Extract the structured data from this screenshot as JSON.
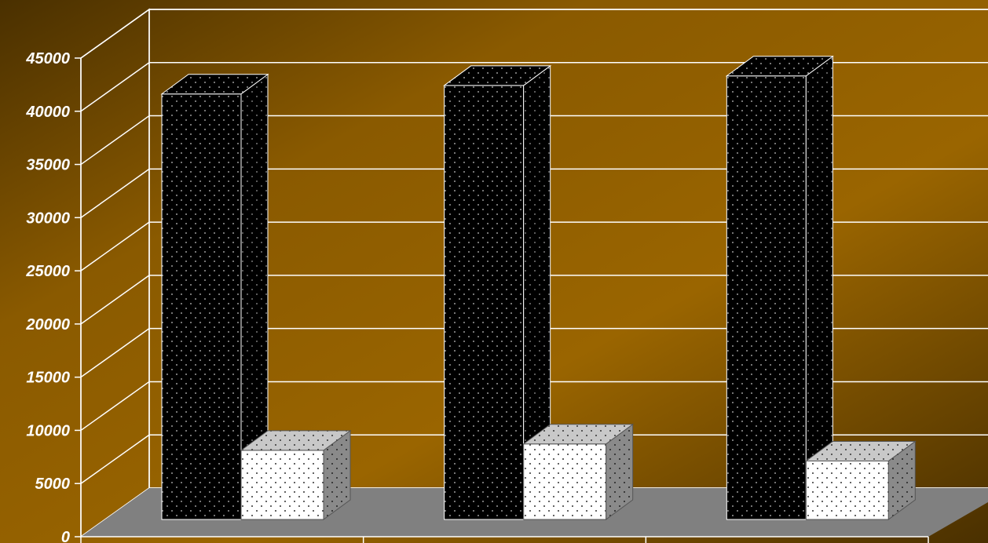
{
  "colors": {
    "background_light": "#9a6500",
    "background_dark": "#4a3000",
    "floor": "#808080",
    "gridline": "#ffffff",
    "series_dark_fill": "#000000",
    "series_light_fill": "#ffffff",
    "tick_text": "#ffffff"
  },
  "chart_data": {
    "type": "bar",
    "style": "3d-clustered-column",
    "categories": [
      "",
      "",
      ""
    ],
    "series": [
      {
        "values": [
          40000,
          40800,
          41700
        ],
        "pattern": "dotted",
        "color": "#000000"
      },
      {
        "values": [
          6500,
          7100,
          5500
        ],
        "pattern": "dotted",
        "color": "#ffffff"
      }
    ],
    "ylim": [
      0,
      45000
    ],
    "yticks": [
      "0",
      "5000",
      "10000",
      "15000",
      "20000",
      "25000",
      "30000",
      "35000",
      "40000",
      "45000"
    ],
    "grid": true,
    "legend": "none",
    "title": "",
    "xlabel": "",
    "ylabel": ""
  }
}
